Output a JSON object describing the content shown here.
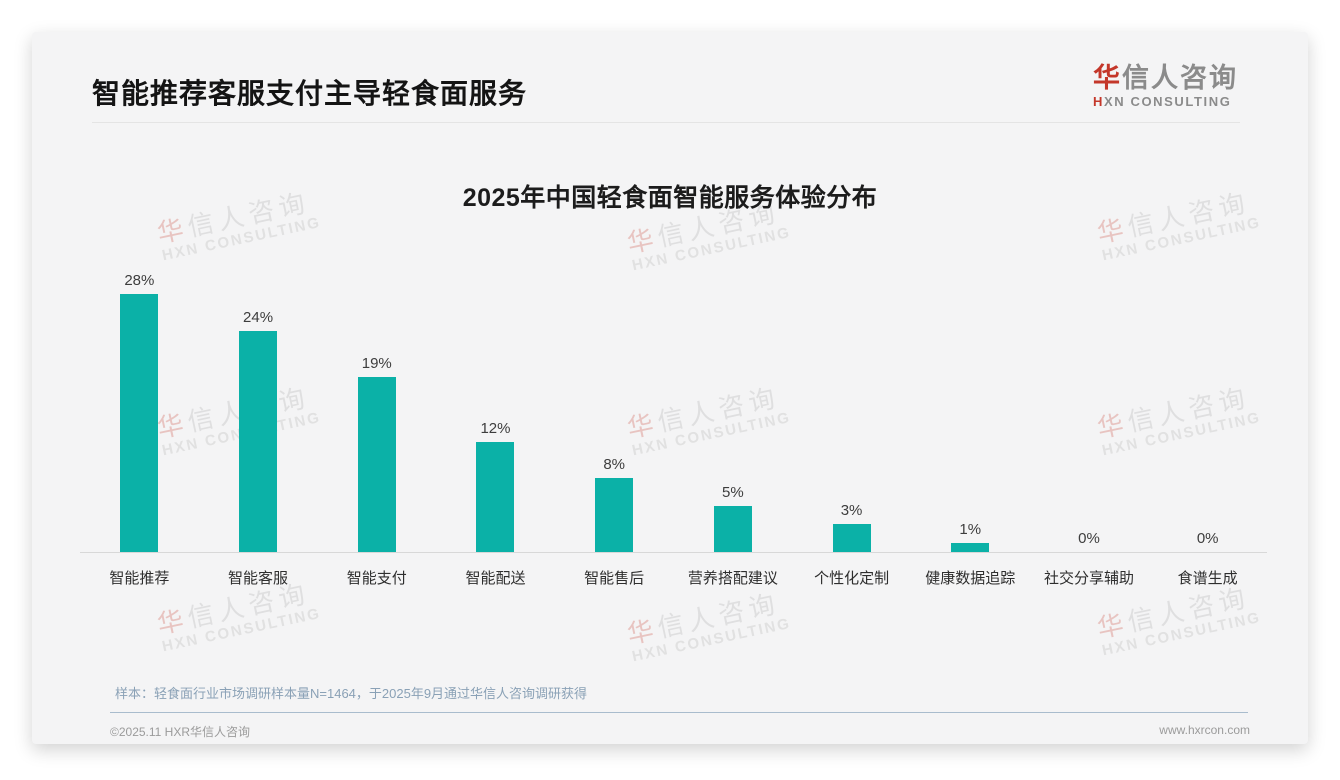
{
  "page": {
    "title": "智能推荐客服支付主导轻食面服务"
  },
  "logo": {
    "cn_head": "华",
    "cn_rest": "信人咨询",
    "en_head": "H",
    "en_rest": "XN CONSULTING"
  },
  "watermark": {
    "cn_head": "华",
    "cn_rest": "信人咨询",
    "en": "HXN CONSULTING"
  },
  "chart_data": {
    "type": "bar",
    "title": "2025年中国轻食面智能服务体验分布",
    "categories": [
      "智能推荐",
      "智能客服",
      "智能支付",
      "智能配送",
      "智能售后",
      "营养搭配建议",
      "个性化定制",
      "健康数据追踪",
      "社交分享辅助",
      "食谱生成"
    ],
    "values": [
      28,
      24,
      19,
      12,
      8,
      5,
      3,
      1,
      0,
      0
    ],
    "unit": "%",
    "bar_color": "#0bb1a7",
    "ylim": [
      0,
      30
    ],
    "grid": false,
    "legend": false,
    "value_label_position": "above-bar"
  },
  "footer": {
    "note": "样本：轻食面行业市场调研样本量N=1464，于2025年9月通过华信人咨询调研获得",
    "copyright": "©2025.11 HXR华信人咨询",
    "website": "www.hxrcon.com"
  }
}
